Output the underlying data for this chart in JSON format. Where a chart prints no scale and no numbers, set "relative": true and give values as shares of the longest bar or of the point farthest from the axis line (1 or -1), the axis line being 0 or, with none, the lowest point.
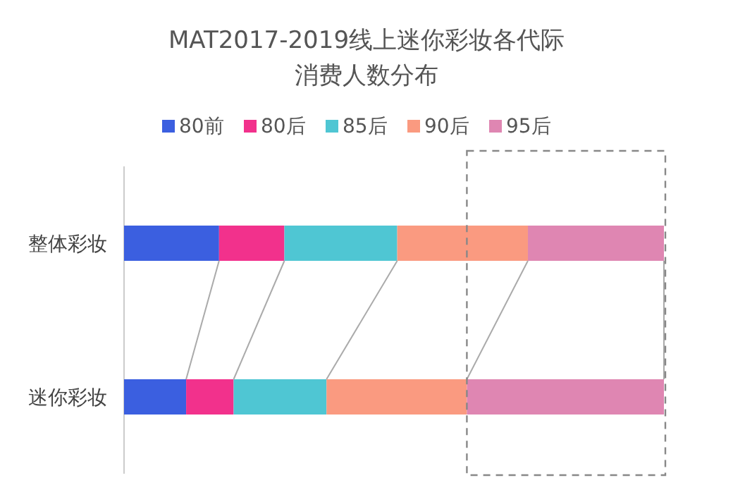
{
  "chart_data": {
    "type": "bar",
    "orientation": "horizontal",
    "stacked": true,
    "relative": true,
    "title": "MAT2017-2019线上迷你彩妆各代际消费人数分布",
    "categories": [
      "整体彩妆",
      "迷你彩妆"
    ],
    "series": [
      {
        "name": "80前",
        "color": "#3b5fe0",
        "values": [
          0.176,
          0.115
        ]
      },
      {
        "name": "80后",
        "color": "#f2318c",
        "values": [
          0.121,
          0.088
        ]
      },
      {
        "name": "85后",
        "color": "#4fc6d3",
        "values": [
          0.209,
          0.172
        ]
      },
      {
        "name": "90后",
        "color": "#fa9a80",
        "values": [
          0.242,
          0.26
        ]
      },
      {
        "name": "95后",
        "color": "#df86b2",
        "values": [
          0.252,
          0.365
        ]
      }
    ],
    "legend": "top"
  }
}
